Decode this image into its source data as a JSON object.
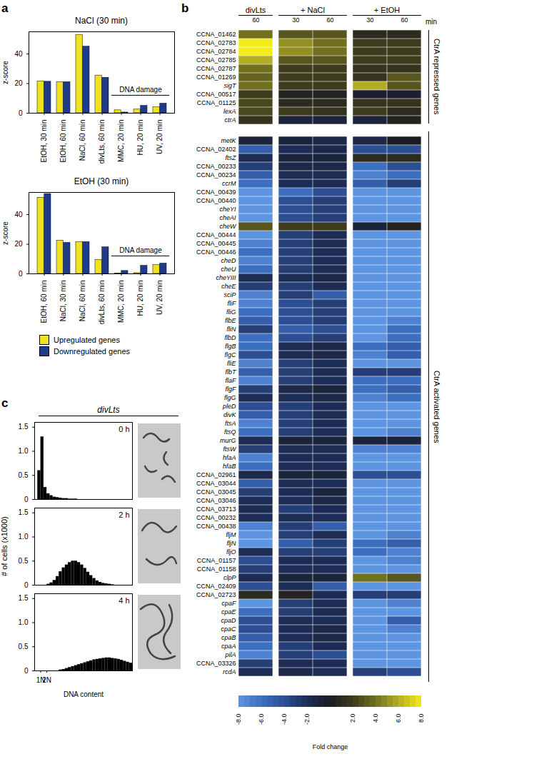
{
  "chart_data": [
    {
      "type": "bar",
      "panel": "a",
      "title": "NaCl (30 min)",
      "ylabel": "z-score",
      "categories": [
        "EtOH, 30 min",
        "EtOH, 60 min",
        "NaCl, 60 min",
        "divLts, 60 min",
        "MMC, 20 min",
        "HU, 20 min",
        "UV, 20 min"
      ],
      "series": [
        {
          "name": "Upregulated genes",
          "color": "#efe21f",
          "values": [
            21.5,
            21,
            53,
            25.5,
            2,
            2.5,
            4
          ]
        },
        {
          "name": "Downregulated genes",
          "color": "#1f3b8c",
          "values": [
            21.3,
            21,
            45,
            24,
            0.5,
            5,
            6.5
          ]
        }
      ],
      "ylim": [
        0,
        55
      ],
      "yticks": [
        0,
        20,
        40
      ],
      "annotation": {
        "text": "DNA damage",
        "categories": [
          "MMC, 20 min",
          "HU, 20 min",
          "UV, 20 min"
        ]
      }
    },
    {
      "type": "bar",
      "panel": "a",
      "title": "EtOH (30 min)",
      "ylabel": "z-score",
      "categories": [
        "EtOH, 60 min",
        "NaCl, 30 min",
        "NaCl, 60 min",
        "divLts, 60 min",
        "MMC, 20 min",
        "HU, 20 min",
        "UV, 20 min"
      ],
      "series": [
        {
          "name": "Upregulated genes",
          "color": "#efe21f",
          "values": [
            51.5,
            22.5,
            21.5,
            9.5,
            0.3,
            0.5,
            6
          ]
        },
        {
          "name": "Downregulated genes",
          "color": "#1f3b8c",
          "values": [
            54,
            21,
            21.5,
            18,
            2,
            5.5,
            7
          ]
        }
      ],
      "ylim": [
        0,
        55
      ],
      "yticks": [
        0,
        20,
        40
      ],
      "annotation": {
        "text": "DNA damage",
        "categories": [
          "MMC, 20 min",
          "HU, 20 min",
          "UV, 20 min"
        ]
      },
      "legend": "bottom"
    },
    {
      "type": "heatmap",
      "panel": "b",
      "columns": [
        {
          "group": "divLts",
          "time": 60
        },
        {
          "group": "+ NaCl",
          "time": 30
        },
        {
          "group": "+ NaCl",
          "time": 60
        },
        {
          "group": "+ EtOH",
          "time": 30
        },
        {
          "group": "+ EtOH",
          "time": 60
        }
      ],
      "time_unit": "min",
      "row_groups": [
        {
          "name": "CtrA repressed genes",
          "genes": [
            "CCNA_01462",
            "CCNA_02783",
            "CCNA_02784",
            "CCNA_02785",
            "CCNA_02787",
            "CCNA_01269",
            "sigT",
            "CCNA_00517",
            "CCNA_01125",
            "lexA",
            "ctrA"
          ],
          "values": [
            [
              4,
              3,
              3,
              1,
              1
            ],
            [
              8,
              5,
              4,
              2,
              2
            ],
            [
              8,
              5,
              4,
              2,
              2
            ],
            [
              6,
              3,
              3,
              2,
              2
            ],
            [
              4,
              2,
              2,
              1.5,
              1.5
            ],
            [
              3.5,
              2,
              2,
              1.5,
              3
            ],
            [
              4,
              2,
              2,
              6,
              3
            ],
            [
              2,
              0.5,
              0.5,
              -0.5,
              -0.5
            ],
            [
              2.5,
              1,
              1,
              1.5,
              1.5
            ],
            [
              2.5,
              2,
              1.5,
              2,
              1
            ],
            [
              1.5,
              -1,
              -1,
              -1,
              0.5
            ]
          ]
        },
        {
          "name": "CtrA activated genes",
          "genes": [
            "metK",
            "CCNA_02402",
            "ftsZ",
            "CCNA_00233",
            "CCNA_00234",
            "ccrM",
            "CCNA_00439",
            "CCNA_00440",
            "cheYI",
            "cheAI",
            "cheW",
            "CCNA_00444",
            "CCNA_00445",
            "CCNA_00446",
            "cheD",
            "cheU",
            "cheYIII",
            "cheE",
            "sciP",
            "fliF",
            "fliG",
            "flbE",
            "fliN",
            "flbD",
            "flgB",
            "flgC",
            "fliE",
            "flbT",
            "flaF",
            "flgF",
            "flgG",
            "pleD",
            "divK",
            "ftsA",
            "ftsQ",
            "murG",
            "ftsW",
            "hfaA",
            "hfaB",
            "CCNA_02961",
            "CCNA_03044",
            "CCNA_03045",
            "CCNA_03046",
            "CCNA_03713",
            "CCNA_00232",
            "CCNA_00438",
            "fljM",
            "fljN",
            "fljO",
            "CCNA_01157",
            "CCNA_01158",
            "clpP",
            "CCNA_02409",
            "CCNA_02723",
            "cpaF",
            "cpaE",
            "cpaD",
            "cpaC",
            "cpaB",
            "cpaA",
            "pilA",
            "CCNA_03326",
            "rcdA"
          ],
          "values": [
            [
              -1,
              -1,
              -1.5,
              -1.5,
              0
            ],
            [
              -5,
              -2,
              -1.5,
              -4,
              -4
            ],
            [
              -2,
              -1,
              -1,
              1,
              1
            ],
            [
              -3,
              -1.5,
              -1.5,
              -6,
              -4
            ],
            [
              -5,
              -2,
              -2,
              -7,
              -6
            ],
            [
              -6,
              -2,
              -2,
              -5,
              -3
            ],
            [
              -8,
              -6,
              -4,
              -8,
              -8
            ],
            [
              -8,
              -4,
              -3,
              -8,
              -8
            ],
            [
              -8,
              -4,
              -3,
              -8,
              -8
            ],
            [
              -8,
              -4,
              -3,
              -8,
              -8
            ],
            [
              3,
              2,
              2,
              -1,
              0.5
            ],
            [
              -8,
              -3,
              -2,
              -8,
              -8
            ],
            [
              -7,
              -3,
              -2,
              -8,
              -8
            ],
            [
              -6,
              -3,
              -2,
              -8,
              -8
            ],
            [
              -7,
              -3,
              -2,
              -8,
              -8
            ],
            [
              -6,
              -3,
              -2,
              -8,
              -8
            ],
            [
              -2,
              -2,
              -1.5,
              -8,
              -8
            ],
            [
              -3,
              -3,
              -2,
              -8,
              -8
            ],
            [
              -7,
              -3,
              -5,
              -8,
              -8
            ],
            [
              -7,
              -4,
              -3,
              -8,
              -8
            ],
            [
              -6,
              -4,
              -3,
              -8,
              -8
            ],
            [
              -5,
              -4,
              -3,
              -8,
              -7
            ],
            [
              -3,
              -5,
              -4,
              -8,
              -6
            ],
            [
              -6,
              -4,
              -3,
              -8,
              -6
            ],
            [
              -6,
              -2,
              -1.5,
              -6,
              -5
            ],
            [
              -4,
              -2,
              -1.5,
              -7,
              -5
            ],
            [
              -7,
              -3,
              -2,
              -8,
              -8
            ],
            [
              -5,
              -3,
              -2,
              -3,
              -3
            ],
            [
              -7,
              -3,
              -2,
              -6,
              -6
            ],
            [
              -3,
              -1.5,
              -1,
              -6,
              -5
            ],
            [
              -2,
              -2,
              -1.5,
              -7,
              -6
            ],
            [
              -4,
              -3,
              -2,
              -8,
              -8
            ],
            [
              -5,
              -3,
              -2,
              -8,
              -8
            ],
            [
              -7,
              -3,
              -2,
              -8,
              -8
            ],
            [
              -6,
              -3,
              -2,
              -8,
              -7
            ],
            [
              -2,
              -1,
              -1,
              -1,
              -1
            ],
            [
              -3,
              -2,
              -2,
              -7,
              -7
            ],
            [
              -7,
              -2,
              -2,
              -8,
              -8
            ],
            [
              -6,
              -2,
              -2,
              -8,
              -8
            ],
            [
              -1.5,
              -1,
              -1,
              -4,
              -4
            ],
            [
              -5,
              -2,
              -2,
              -8,
              -8
            ],
            [
              -3,
              -2,
              -1,
              -8,
              -8
            ],
            [
              -2,
              -2,
              -1.5,
              -8,
              -8
            ],
            [
              -2,
              -3,
              -2,
              -8,
              -8
            ],
            [
              -2,
              -2,
              -2,
              -8,
              -8
            ],
            [
              -7,
              -3,
              -5,
              -8,
              -8
            ],
            [
              -8,
              -3,
              -2,
              -8,
              -7
            ],
            [
              -8,
              -5,
              -3,
              -6,
              -5
            ],
            [
              -2,
              -3,
              -3,
              -6,
              -7
            ],
            [
              -4,
              -2,
              -2,
              -8,
              -7
            ],
            [
              -3,
              -2,
              -2,
              -8,
              -8
            ],
            [
              -2,
              -1,
              -1,
              4,
              3
            ],
            [
              -4,
              -2,
              -5,
              -8,
              -8
            ],
            [
              1,
              0.5,
              -2,
              -3,
              -3
            ],
            [
              -8,
              -3,
              -2,
              -8,
              -7
            ],
            [
              -6,
              -3,
              -2,
              -8,
              -8
            ],
            [
              -4,
              -2,
              -2,
              -8,
              -5
            ],
            [
              -4,
              -2,
              -1.5,
              -8,
              -7
            ],
            [
              -5,
              -2,
              -1.5,
              -8,
              -8
            ],
            [
              -6,
              -3,
              -2,
              -8,
              -8
            ],
            [
              -7,
              -3,
              -4,
              -8,
              -8
            ],
            [
              -3,
              -2,
              -2,
              -8,
              -8
            ],
            [
              -2,
              -1.5,
              -2,
              -3,
              -4
            ]
          ]
        }
      ],
      "colorbar": {
        "label": "Fold change",
        "range": [
          -8,
          8
        ],
        "ticks": [
          {
            "value": -8,
            "label": "-8.0"
          },
          {
            "value": -6,
            "label": "-6.0"
          },
          {
            "value": -4,
            "label": "-4.0"
          },
          {
            "value": -2,
            "label": "-2.0"
          },
          {
            "value": 2,
            "label": "2.0"
          },
          {
            "value": 4,
            "label": "4.0"
          },
          {
            "value": 6,
            "label": "6.0"
          },
          {
            "value": 8,
            "label": "8.0"
          }
        ],
        "colors": [
          "#5e95e0",
          "#3d6fc0",
          "#2c4f94",
          "#1d2c55",
          "#1b1b22",
          "#3d3b1c",
          "#72701f",
          "#b3ad25",
          "#f4ec1a"
        ]
      }
    },
    {
      "type": "histogram",
      "panel": "c",
      "title": "divLts",
      "ylabel": "# of cells (x1000)",
      "xlabel": "DNA content",
      "color": "#000000",
      "xlim": [
        0,
        16
      ],
      "xticks": [
        {
          "value": 1,
          "label": "1N"
        },
        {
          "value": 2,
          "label": "2N"
        }
      ],
      "ylim": [
        0,
        1.6
      ],
      "yticks": [
        0,
        0.5,
        {
          "value": 1,
          "label": "1.0"
        },
        1.5
      ],
      "bins": [
        0,
        0.5,
        1,
        1.5,
        2,
        2.5,
        3,
        3.5,
        4,
        4.5,
        5,
        5.5,
        6,
        6.5,
        7,
        7.5,
        8,
        8.5,
        9,
        9.5,
        10,
        10.5,
        11,
        11.5,
        12,
        12.5,
        13,
        13.5,
        14,
        14.5,
        15,
        15.5,
        16
      ],
      "series": [
        {
          "name": "0 h",
          "values": [
            0,
            0.6,
            1.3,
            0.25,
            0.12,
            0.08,
            0.05,
            0.04,
            0.03,
            0.02,
            0.02,
            0.01,
            0.01,
            0.01,
            0,
            0,
            0,
            0,
            0,
            0,
            0,
            0,
            0,
            0,
            0,
            0,
            0,
            0,
            0,
            0,
            0,
            0
          ]
        },
        {
          "name": "2 h",
          "values": [
            0,
            0,
            0,
            0,
            0.02,
            0.05,
            0.1,
            0.18,
            0.28,
            0.36,
            0.42,
            0.47,
            0.5,
            0.5,
            0.47,
            0.42,
            0.35,
            0.27,
            0.2,
            0.14,
            0.09,
            0.06,
            0.04,
            0.03,
            0.02,
            0.01,
            0,
            0,
            0,
            0,
            0,
            0
          ]
        },
        {
          "name": "4 h",
          "values": [
            0,
            0,
            0,
            0,
            0,
            0,
            0,
            0,
            0.02,
            0.03,
            0.05,
            0.07,
            0.09,
            0.11,
            0.13,
            0.15,
            0.17,
            0.19,
            0.21,
            0.23,
            0.24,
            0.25,
            0.26,
            0.27,
            0.27,
            0.26,
            0.25,
            0.24,
            0.22,
            0.2,
            0.18,
            0.16
          ]
        }
      ]
    }
  ]
}
